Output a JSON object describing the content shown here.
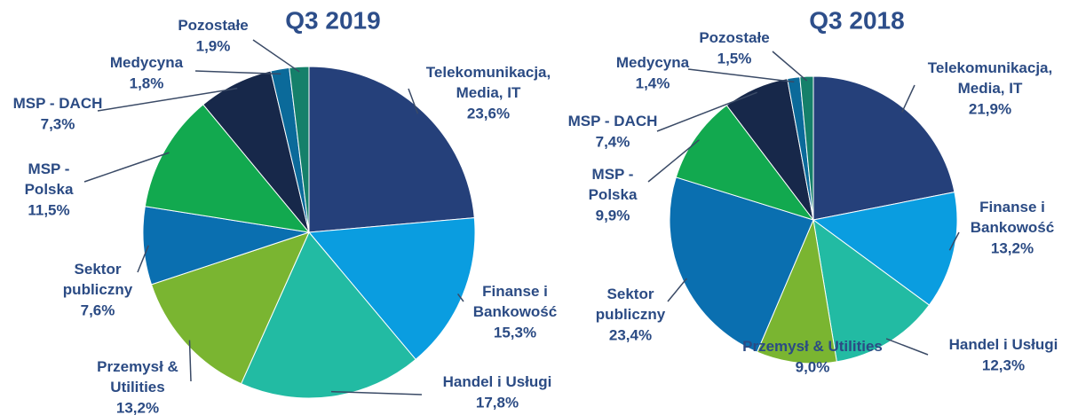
{
  "chart_data": [
    {
      "type": "pie",
      "title": "Q3 2019",
      "categories": [
        "Telekomunikacja, Media, IT",
        "Finanse i Bankowość",
        "Handel i Usługi",
        "Przemysł & Utilities",
        "Sektor publiczny",
        "MSP - Polska",
        "MSP - DACH",
        "Medycyna",
        "Pozostałe"
      ],
      "values": [
        23.6,
        15.3,
        17.8,
        13.2,
        7.6,
        11.5,
        7.3,
        1.8,
        1.9
      ],
      "value_labels": [
        "23,6%",
        "15,3%",
        "17,8%",
        "13,2%",
        "7,6%",
        "11,5%",
        "7,3%",
        "1,8%",
        "1,9%"
      ],
      "colors": [
        "#25407a",
        "#0a9de0",
        "#22bba3",
        "#7ab531",
        "#0a6fb0",
        "#12a94f",
        "#17284a",
        "#0b6a9a",
        "#15806a"
      ]
    },
    {
      "type": "pie",
      "title": "Q3 2018",
      "categories": [
        "Telekomunikacja, Media, IT",
        "Finanse i Bankowość",
        "Handel i Usługi",
        "Przemysł & Utilities",
        "Sektor publiczny",
        "MSP - Polska",
        "MSP - DACH",
        "Medycyna",
        "Pozostałe"
      ],
      "values": [
        21.9,
        13.2,
        12.3,
        9.0,
        23.4,
        9.9,
        7.4,
        1.4,
        1.5
      ],
      "value_labels": [
        "21,9%",
        "13,2%",
        "12,3%",
        "9,0%",
        "23,4%",
        "9,9%",
        "7,4%",
        "1,4%",
        "1,5%"
      ],
      "colors": [
        "#25407a",
        "#0a9de0",
        "#22bba3",
        "#7ab531",
        "#0a6fb0",
        "#12a94f",
        "#17284a",
        "#0b6a9a",
        "#15806a"
      ]
    }
  ]
}
